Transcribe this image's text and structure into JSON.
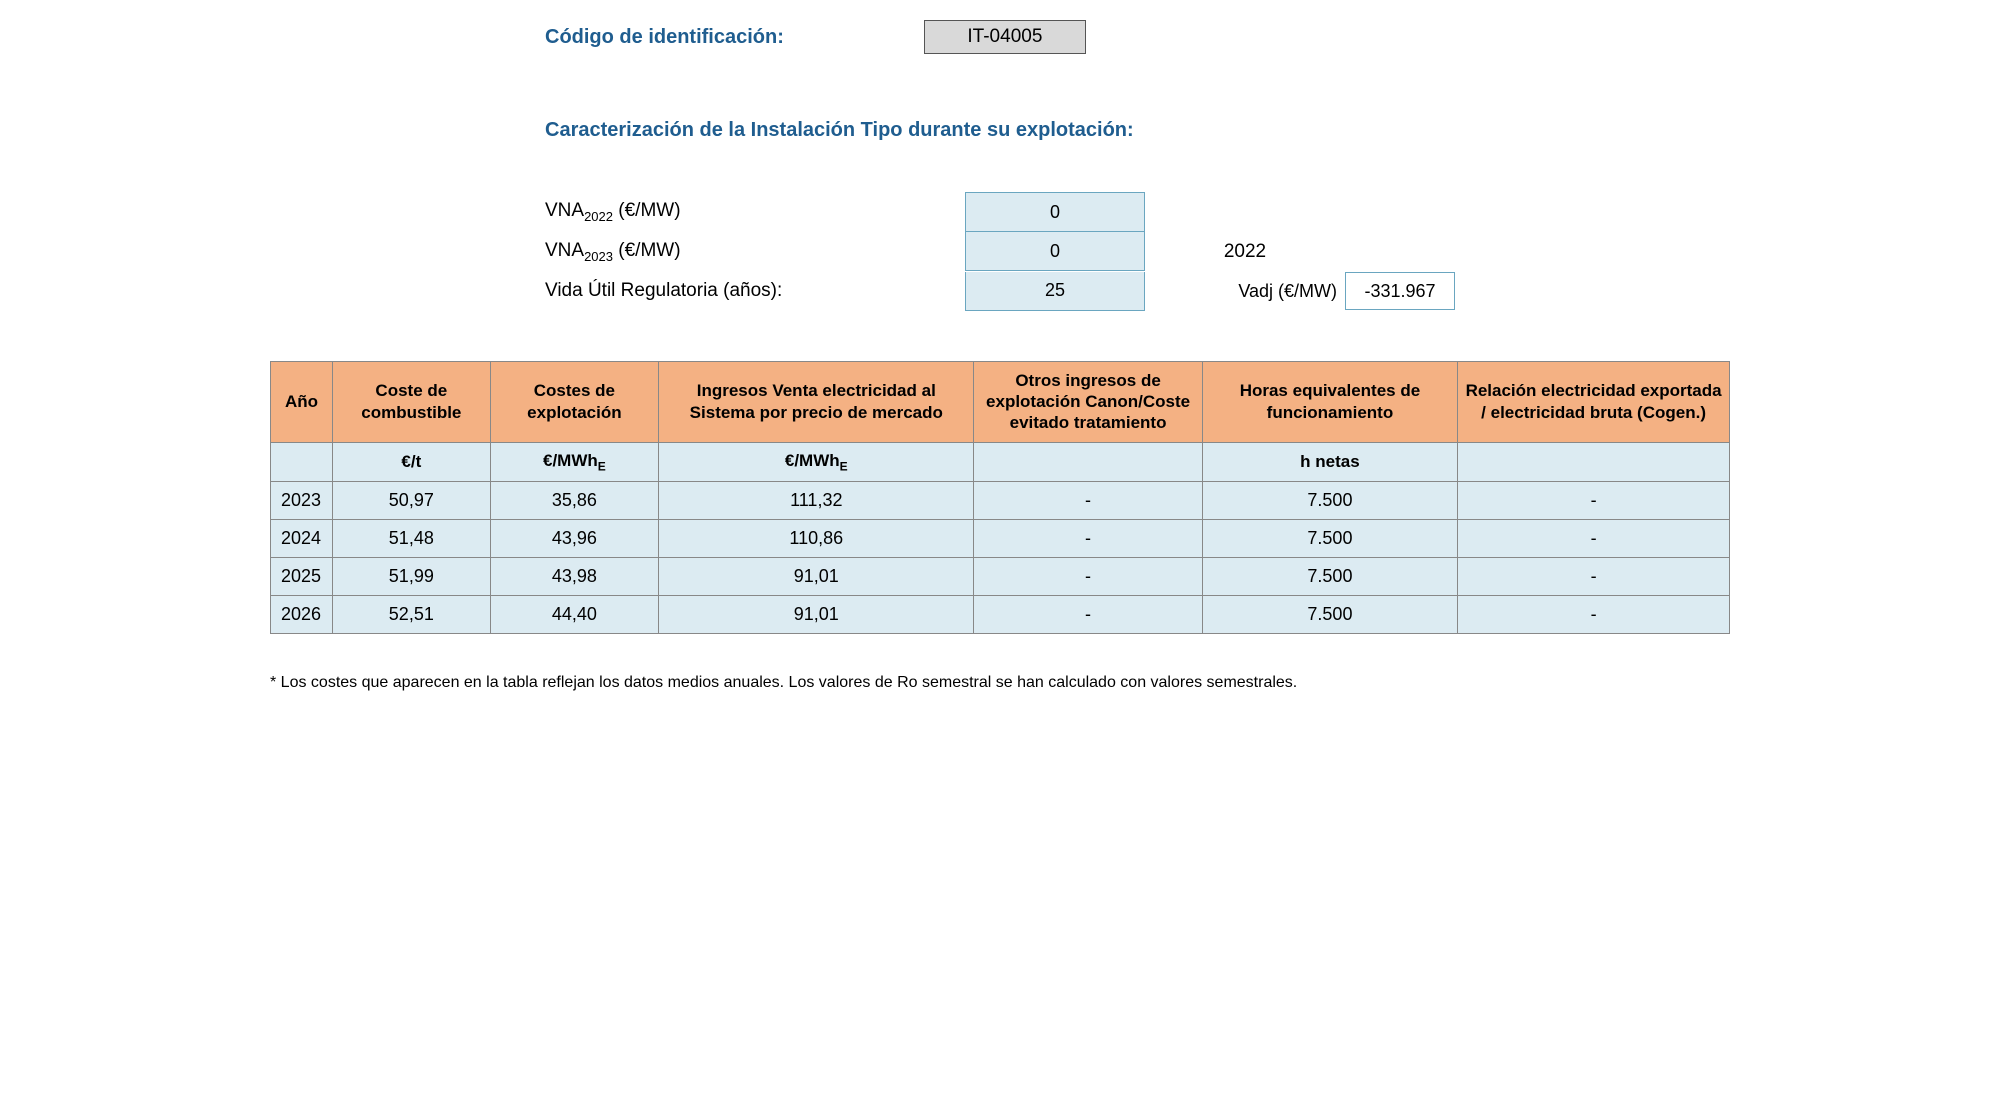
{
  "header": {
    "code_label": "Código de identificación:",
    "code_value": "IT-04005",
    "section_title": "Caracterización de la Instalación Tipo durante su explotación:"
  },
  "params": {
    "vna2022_label_prefix": "VNA",
    "vna2022_sub": "2022",
    "vna2022_unit": " (€/MW)",
    "vna2022_value": "0",
    "vna2023_label_prefix": "VNA",
    "vna2023_sub": "2023",
    "vna2023_unit": " (€/MW)",
    "vna2023_value": "0",
    "vida_label": "Vida Útil Regulatoria (años):",
    "vida_value": "25",
    "side_year": "2022",
    "vadj_label": "Vadj (€/MW)",
    "vadj_value": "-331.967"
  },
  "table": {
    "columns": [
      "Año",
      "Coste de combustible",
      "Costes de explotación",
      "Ingresos Venta electricidad al Sistema por precio de mercado",
      "Otros ingresos de explotación Canon/Coste evitado tratamiento",
      "Horas equivalentes de funcionamiento",
      "Relación electricidad exportada / electricidad bruta (Cogen.)"
    ],
    "units": [
      "",
      "€/t",
      "€/MWh",
      "€/MWh",
      "",
      "h netas",
      ""
    ],
    "rows": [
      [
        "2023",
        "50,97",
        "35,86",
        "111,32",
        "-",
        "7.500",
        "-"
      ],
      [
        "2024",
        "51,48",
        "43,96",
        "110,86",
        "-",
        "7.500",
        "-"
      ],
      [
        "2025",
        "51,99",
        "43,98",
        "91,01",
        "-",
        "7.500",
        "-"
      ],
      [
        "2026",
        "52,51",
        "44,40",
        "91,01",
        "-",
        "7.500",
        "-"
      ]
    ],
    "col_widths": [
      "55px",
      "145px",
      "155px",
      "290px",
      "210px",
      "235px",
      "250px"
    ],
    "header_bg": "#f4b183",
    "cell_bg": "#dcebf2",
    "border_color": "#888888"
  },
  "footnote": "* Los costes que aparecen en la tabla reflejan los datos medios anuales. Los valores de Ro semestral se han calculado con valores semestrales."
}
